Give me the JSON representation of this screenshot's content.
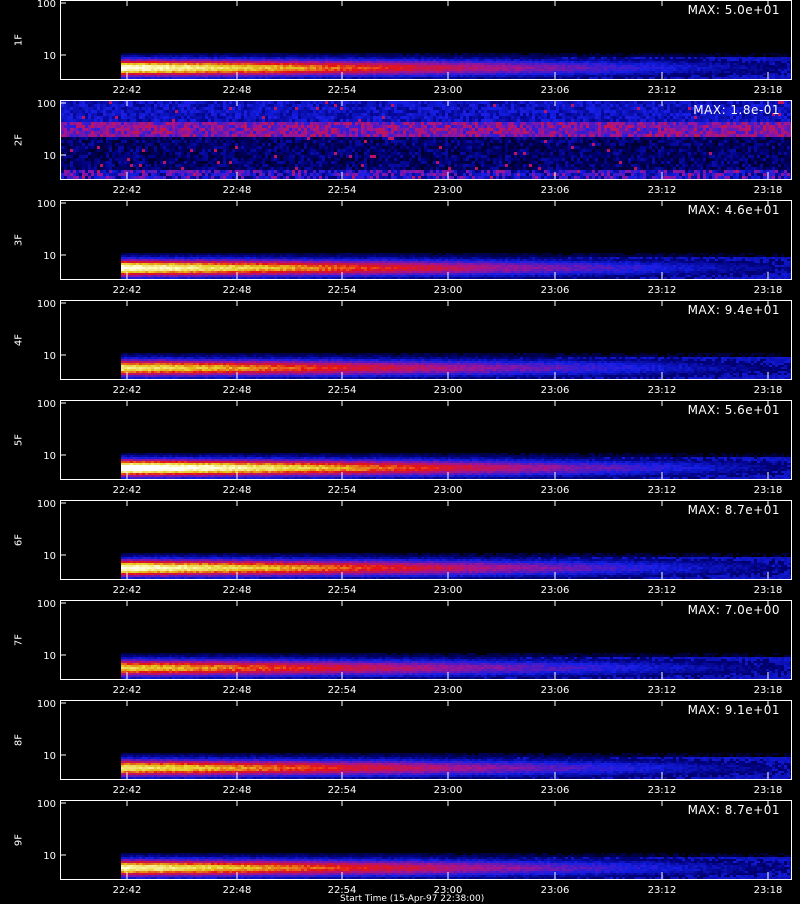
{
  "chart_data": [
    {
      "type": "heatmap",
      "ylabel": "1F",
      "max_label": "MAX: 5.0e+01",
      "y_ticks": [
        "100",
        "10"
      ],
      "x_ticks": [
        "22:42",
        "22:48",
        "22:54",
        "23:00",
        "23:06",
        "23:12",
        "23:18"
      ],
      "profile": "plasma",
      "intensity": 1.0,
      "band": "low"
    },
    {
      "type": "heatmap",
      "ylabel": "2F",
      "max_label": "MAX: 1.8e-01",
      "y_ticks": [
        "100",
        "10"
      ],
      "x_ticks": [
        "22:42",
        "22:48",
        "22:54",
        "23:00",
        "23:06",
        "23:12",
        "23:18"
      ],
      "profile": "noise",
      "intensity": 0.6,
      "band": "full"
    },
    {
      "type": "heatmap",
      "ylabel": "3F",
      "max_label": "MAX: 4.6e+01",
      "y_ticks": [
        "100",
        "10"
      ],
      "x_ticks": [
        "22:42",
        "22:48",
        "22:54",
        "23:00",
        "23:06",
        "23:12",
        "23:18"
      ],
      "profile": "plasma",
      "intensity": 1.0,
      "band": "low"
    },
    {
      "type": "heatmap",
      "ylabel": "4F",
      "max_label": "MAX: 9.4e+01",
      "y_ticks": [
        "100",
        "10"
      ],
      "x_ticks": [
        "22:42",
        "22:48",
        "22:54",
        "23:00",
        "23:06",
        "23:12",
        "23:18"
      ],
      "profile": "plasma",
      "intensity": 0.9,
      "band": "low"
    },
    {
      "type": "heatmap",
      "ylabel": "5F",
      "max_label": "MAX: 5.6e+01",
      "y_ticks": [
        "100",
        "10"
      ],
      "x_ticks": [
        "22:42",
        "22:48",
        "22:54",
        "23:00",
        "23:06",
        "23:12",
        "23:18"
      ],
      "profile": "plasma",
      "intensity": 1.1,
      "band": "low"
    },
    {
      "type": "heatmap",
      "ylabel": "6F",
      "max_label": "MAX: 8.7e+01",
      "y_ticks": [
        "100",
        "10"
      ],
      "x_ticks": [
        "22:42",
        "22:48",
        "22:54",
        "23:00",
        "23:06",
        "23:12",
        "23:18"
      ],
      "profile": "plasma",
      "intensity": 1.0,
      "band": "low"
    },
    {
      "type": "heatmap",
      "ylabel": "7F",
      "max_label": "MAX: 7.0e+00",
      "y_ticks": [
        "100",
        "10"
      ],
      "x_ticks": [
        "22:42",
        "22:48",
        "22:54",
        "23:00",
        "23:06",
        "23:12",
        "23:18"
      ],
      "profile": "plasma",
      "intensity": 0.85,
      "band": "low"
    },
    {
      "type": "heatmap",
      "ylabel": "8F",
      "max_label": "MAX: 9.1e+01",
      "y_ticks": [
        "100",
        "10"
      ],
      "x_ticks": [
        "22:42",
        "22:48",
        "22:54",
        "23:00",
        "23:06",
        "23:12",
        "23:18"
      ],
      "profile": "plasma",
      "intensity": 0.9,
      "band": "low"
    },
    {
      "type": "heatmap",
      "ylabel": "9F",
      "max_label": "MAX: 8.7e+01",
      "y_ticks": [
        "100",
        "10"
      ],
      "x_ticks": [
        "22:42",
        "22:48",
        "22:54",
        "23:00",
        "23:06",
        "23:12",
        "23:18"
      ],
      "profile": "plasma",
      "intensity": 0.95,
      "band": "low"
    }
  ],
  "x_axis_title": "Start Time (15-Apr-97 22:38:00)"
}
